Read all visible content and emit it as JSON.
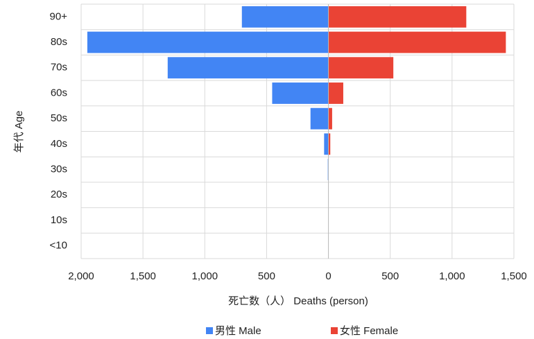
{
  "chart_data": {
    "type": "pyramid",
    "x_label": "死亡数（人） Deaths (person)",
    "y_label": "年代 Age",
    "categories": [
      "90+",
      "80s",
      "70s",
      "60s",
      "50s",
      "40s",
      "30s",
      "20s",
      "10s",
      "<10"
    ],
    "series": [
      {
        "name": "男性 Male",
        "color": "#4285f4",
        "values": [
          700,
          1950,
          1300,
          455,
          145,
          35,
          5,
          0,
          0,
          0
        ]
      },
      {
        "name": "女性 Female",
        "color": "#ea4335",
        "values": [
          1115,
          1435,
          525,
          120,
          30,
          15,
          1,
          0,
          0,
          0
        ]
      }
    ],
    "xlim": [
      -2000,
      1500
    ],
    "xticks": [
      {
        "value": -2000,
        "label": "2,000"
      },
      {
        "value": -1500,
        "label": "1,500"
      },
      {
        "value": -1000,
        "label": "1,000"
      },
      {
        "value": -500,
        "label": "500"
      },
      0,
      500,
      {
        "value": 1000,
        "label": "1,000"
      },
      {
        "value": 1500,
        "label": "1,500"
      }
    ],
    "grid": true,
    "legend": "bottom"
  }
}
